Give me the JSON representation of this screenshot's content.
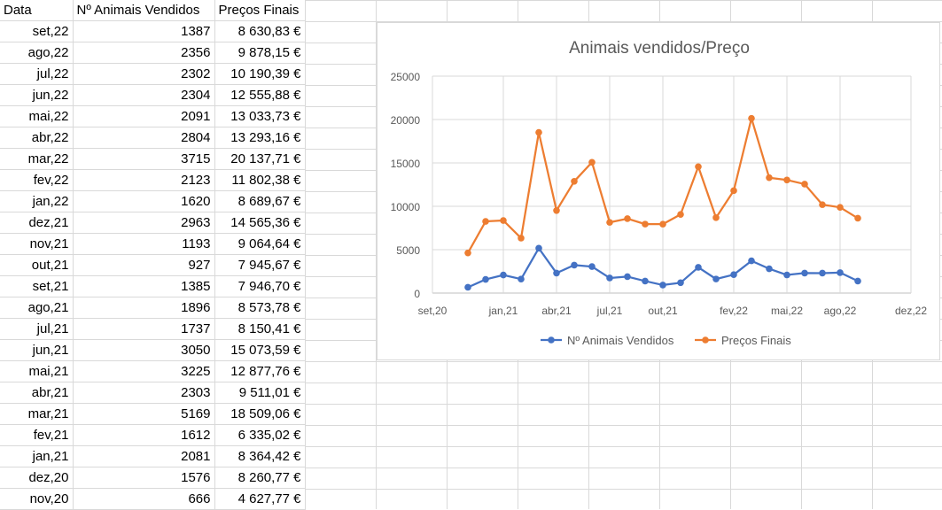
{
  "sheet": {
    "headers": [
      "Data",
      "Nº Animais Vendidos",
      "Preços Finais"
    ],
    "rows": [
      [
        "set,22",
        "1387",
        "8 630,83 €"
      ],
      [
        "ago,22",
        "2356",
        "9 878,15 €"
      ],
      [
        "jul,22",
        "2302",
        "10 190,39 €"
      ],
      [
        "jun,22",
        "2304",
        "12 555,88 €"
      ],
      [
        "mai,22",
        "2091",
        "13 033,73 €"
      ],
      [
        "abr,22",
        "2804",
        "13 293,16 €"
      ],
      [
        "mar,22",
        "3715",
        "20 137,71 €"
      ],
      [
        "fev,22",
        "2123",
        "11 802,38 €"
      ],
      [
        "jan,22",
        "1620",
        "8 689,67 €"
      ],
      [
        "dez,21",
        "2963",
        "14 565,36 €"
      ],
      [
        "nov,21",
        "1193",
        "9 064,64 €"
      ],
      [
        "out,21",
        "927",
        "7 945,67 €"
      ],
      [
        "set,21",
        "1385",
        "7 946,70 €"
      ],
      [
        "ago,21",
        "1896",
        "8 573,78 €"
      ],
      [
        "jul,21",
        "1737",
        "8 150,41 €"
      ],
      [
        "jun,21",
        "3050",
        "15 073,59 €"
      ],
      [
        "mai,21",
        "3225",
        "12 877,76 €"
      ],
      [
        "abr,21",
        "2303",
        "9 511,01 €"
      ],
      [
        "mar,21",
        "5169",
        "18 509,06 €"
      ],
      [
        "fev,21",
        "1612",
        "6 335,02 €"
      ],
      [
        "jan,21",
        "2081",
        "8 364,42 €"
      ],
      [
        "dez,20",
        "1576",
        "8 260,77 €"
      ],
      [
        "nov,20",
        "666",
        "4 627,77 €"
      ]
    ]
  },
  "chart_data": {
    "type": "line",
    "title": "Animais vendidos/Preço",
    "x_month_offsets": [
      0,
      1,
      2,
      3,
      4,
      5,
      6,
      7,
      8,
      9,
      10,
      11,
      12,
      13,
      14,
      15,
      16,
      17,
      18,
      19,
      20,
      21,
      22
    ],
    "x_tick_labels": [
      "set,20",
      "jan,21",
      "abr,21",
      "jul,21",
      "out,21",
      "fev,22",
      "mai,22",
      "ago,22",
      "dez,22"
    ],
    "x_tick_month_offsets": [
      -2,
      2,
      5,
      8,
      11,
      15,
      18,
      21,
      25
    ],
    "xlim_month_offsets": [
      -2,
      25
    ],
    "ylim": [
      0,
      25000
    ],
    "y_ticks": [
      0,
      5000,
      10000,
      15000,
      20000,
      25000
    ],
    "y_tick_labels": [
      "0",
      "5000",
      "10000",
      "15000",
      "20000",
      "25000"
    ],
    "grid": true,
    "legend_position": "bottom",
    "series": [
      {
        "name": "Nº Animais Vendidos",
        "color": "#4472c4",
        "values": [
          666,
          1576,
          2081,
          1612,
          5169,
          2303,
          3225,
          3050,
          1737,
          1896,
          1385,
          927,
          1193,
          2963,
          1620,
          2123,
          3715,
          2804,
          2091,
          2304,
          2302,
          2356,
          1387
        ]
      },
      {
        "name": "Preços Finais",
        "color": "#ed7d31",
        "values": [
          4627.77,
          8260.77,
          8364.42,
          6335.02,
          18509.06,
          9511.01,
          12877.76,
          15073.59,
          8150.41,
          8573.78,
          7946.7,
          7945.67,
          9064.64,
          14565.36,
          8689.67,
          11802.38,
          20137.71,
          13293.16,
          13033.73,
          12555.88,
          10190.39,
          9878.15,
          8630.83
        ]
      }
    ]
  }
}
